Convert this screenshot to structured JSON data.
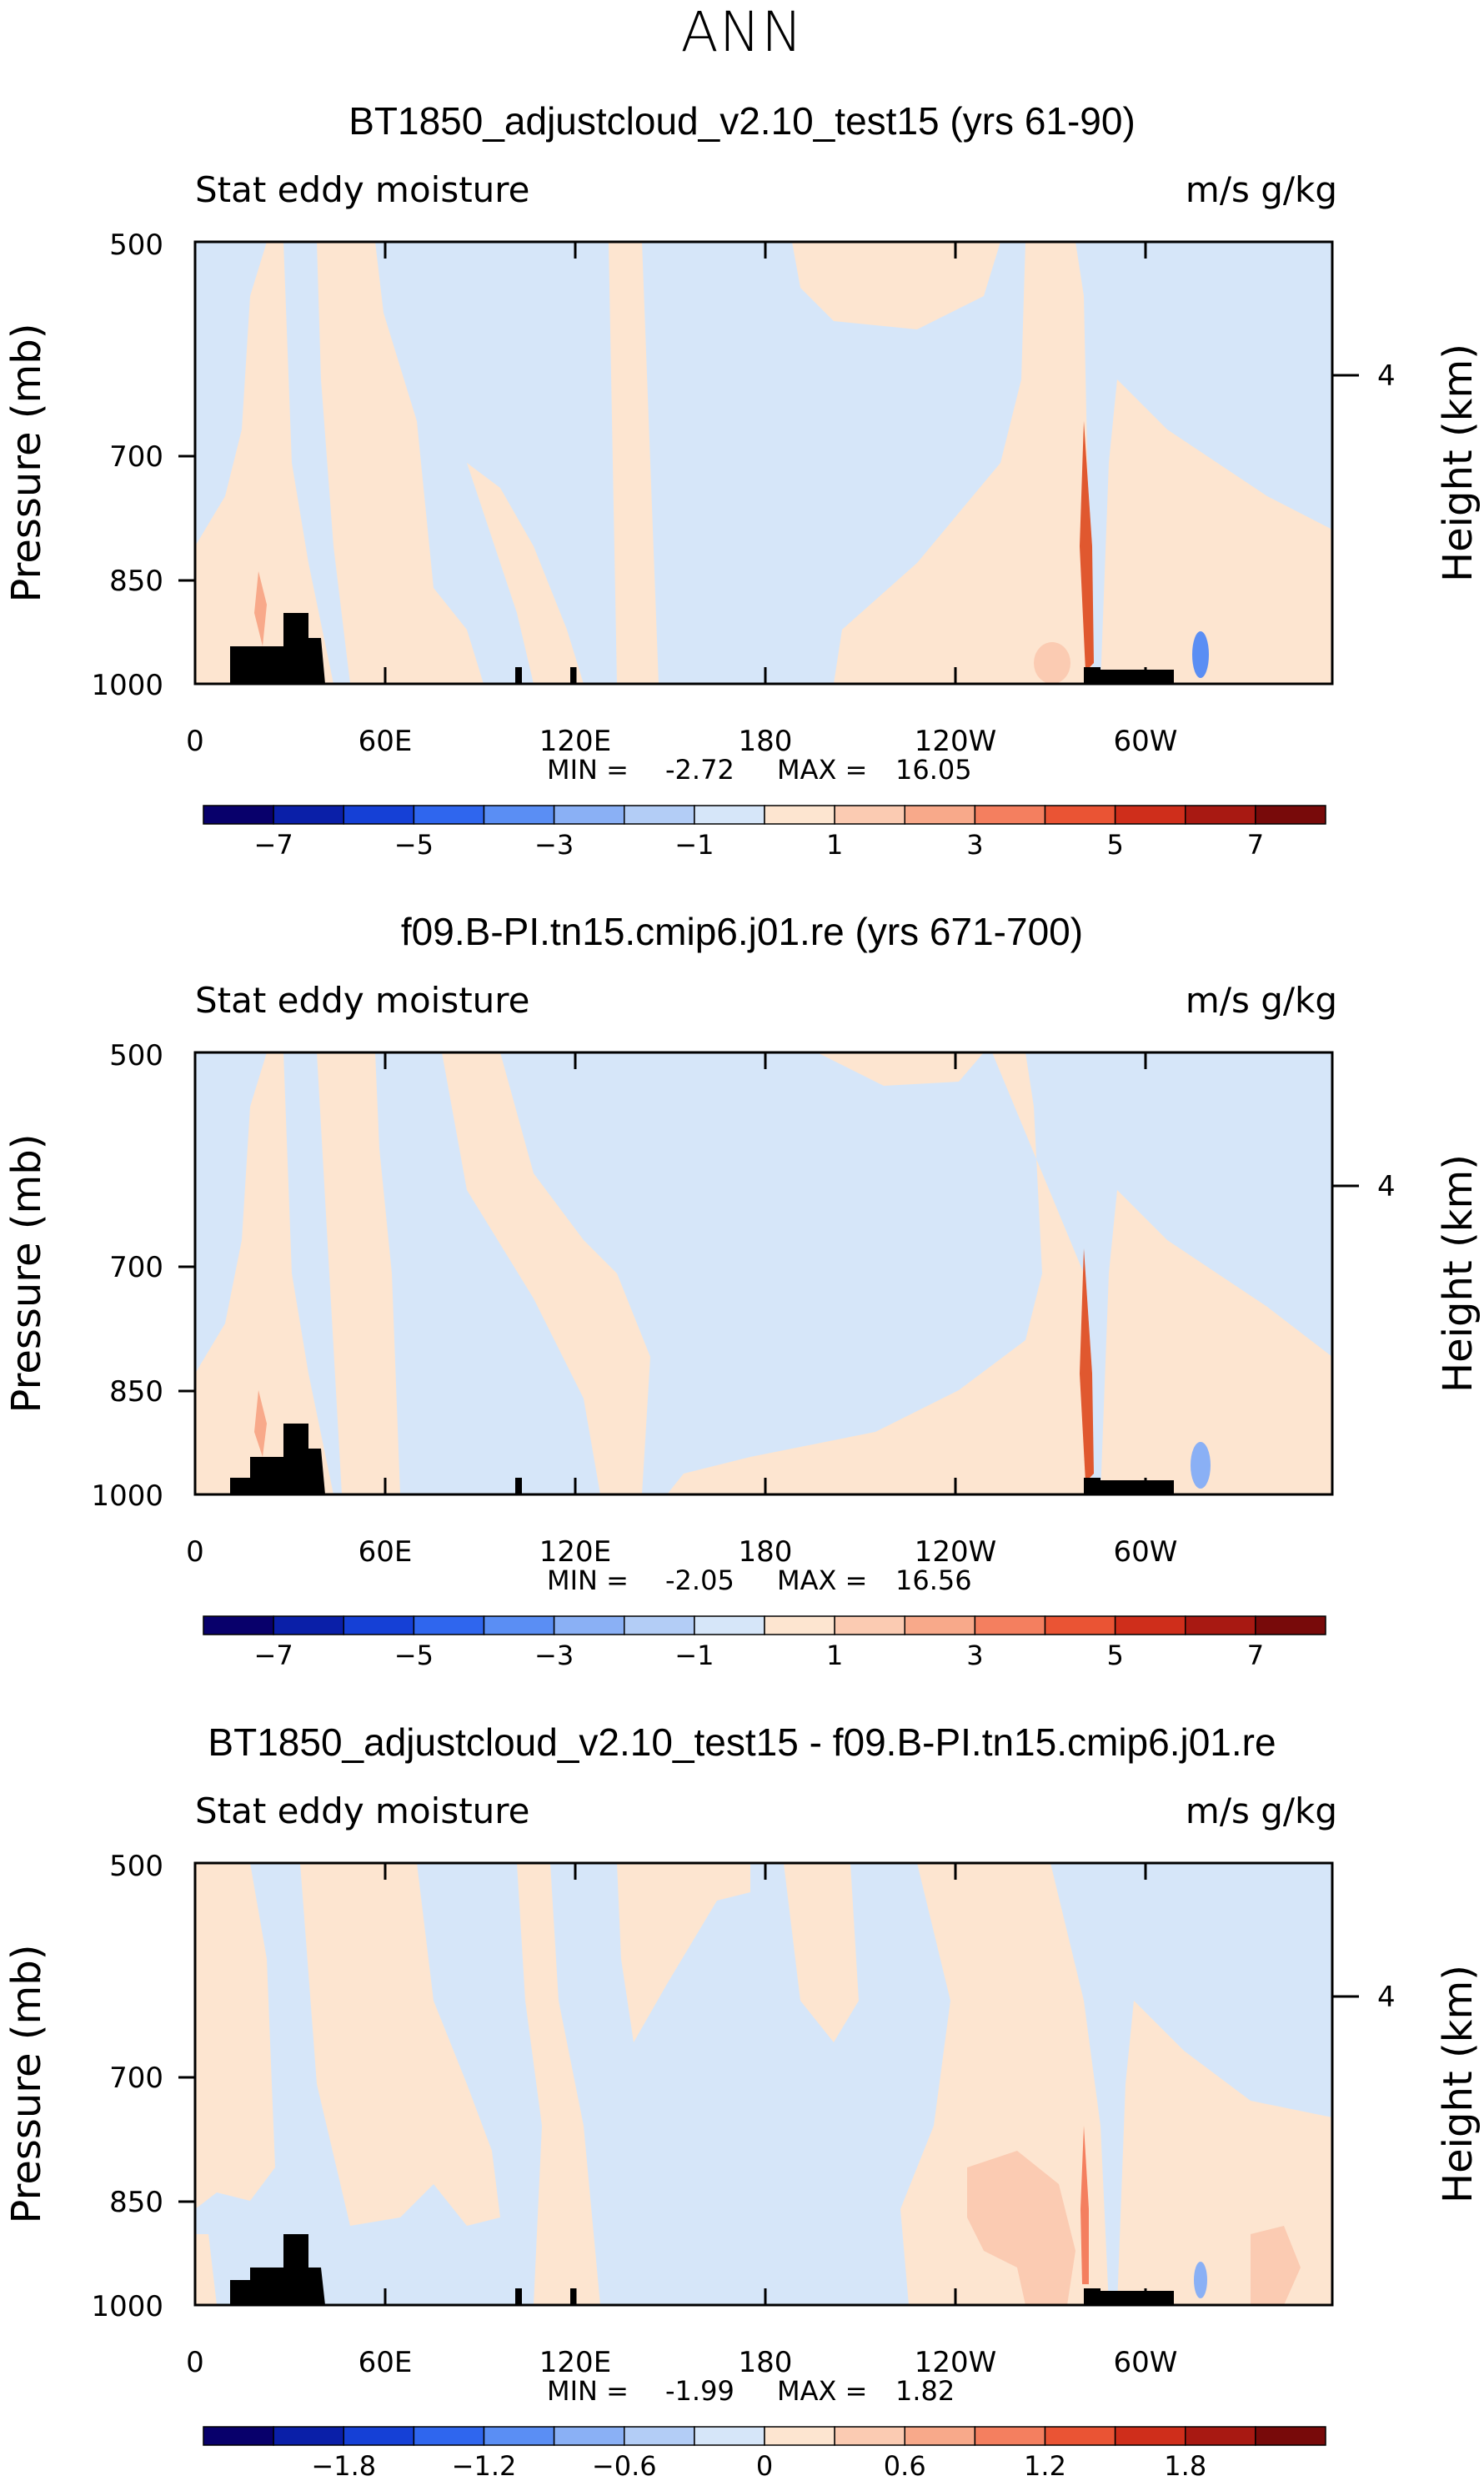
{
  "title": "ANN",
  "chart_data": [
    {
      "type": "heatmap",
      "title": "BT1850_adjustcloud_v2.10_test15 (yrs 61-90)",
      "left_label": "Stat eddy moisture",
      "right_label": "m/s g/kg",
      "ylabel": "Pressure (mb)",
      "ylabel_right": "Height (km)",
      "yticks": [
        500,
        700,
        850,
        1000
      ],
      "yticks_right": [
        "4"
      ],
      "xticks": [
        "0",
        "60E",
        "120E",
        "180",
        "120W",
        "60W"
      ],
      "min_label": "MIN =",
      "min": "-2.72",
      "max_label": "MAX =",
      "max": "16.05",
      "colorbar_labels": [
        "-7",
        "-5",
        "-3",
        "-1",
        "1",
        "3",
        "5",
        "7"
      ]
    },
    {
      "type": "heatmap",
      "title": "f09.B-PI.tn15.cmip6.j01.re (yrs 671-700)",
      "left_label": "Stat eddy moisture",
      "right_label": "m/s g/kg",
      "ylabel": "Pressure (mb)",
      "ylabel_right": "Height (km)",
      "yticks": [
        500,
        700,
        850,
        1000
      ],
      "yticks_right": [
        "4"
      ],
      "xticks": [
        "0",
        "60E",
        "120E",
        "180",
        "120W",
        "60W"
      ],
      "min_label": "MIN =",
      "min": "-2.05",
      "max_label": "MAX =",
      "max": "16.56",
      "colorbar_labels": [
        "-7",
        "-5",
        "-3",
        "-1",
        "1",
        "3",
        "5",
        "7"
      ]
    },
    {
      "type": "heatmap",
      "title": "BT1850_adjustcloud_v2.10_test15 - f09.B-PI.tn15.cmip6.j01.re",
      "left_label": "Stat eddy moisture",
      "right_label": "m/s g/kg",
      "ylabel": "Pressure (mb)",
      "ylabel_right": "Height (km)",
      "yticks": [
        500,
        700,
        850,
        1000
      ],
      "yticks_right": [
        "4"
      ],
      "xticks": [
        "0",
        "60E",
        "120E",
        "180",
        "120W",
        "60W"
      ],
      "min_label": "MIN =",
      "min": "-1.99",
      "max_label": "MAX =",
      "max": "1.82",
      "colorbar_labels": [
        "-1.8",
        "-1.2",
        "-0.6",
        "0",
        "0.6",
        "1.2",
        "1.8"
      ]
    }
  ],
  "colors": {
    "colormap": [
      "#08006b",
      "#0a1fa8",
      "#1540d6",
      "#2f66ee",
      "#5a8ef4",
      "#8ab0f5",
      "#b3cdf6",
      "#d6e6f9",
      "#fde5d0",
      "#fbcbb2",
      "#f8a98a",
      "#f47f5f",
      "#ea5434",
      "#cf2e1b",
      "#a81912",
      "#780a0a"
    ],
    "background_pos": "#fde8d6",
    "background_neg": "#d6e6f9",
    "terrain": "#000000"
  }
}
